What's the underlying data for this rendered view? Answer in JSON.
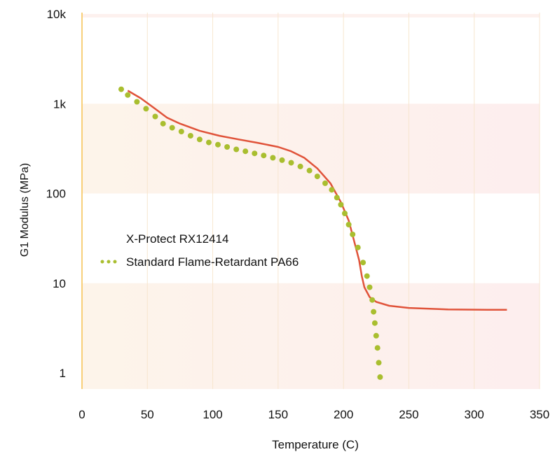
{
  "chart_data": {
    "type": "line",
    "xlabel": "Temperature (C)",
    "ylabel": "G1 Modulus (MPa)",
    "xlim": [
      0,
      350
    ],
    "ylim": [
      0.7,
      10000
    ],
    "y_scale": "log",
    "x_ticks": [
      0,
      50,
      100,
      150,
      200,
      250,
      300,
      350
    ],
    "y_ticks": [
      1,
      10,
      100,
      1000,
      10000
    ],
    "y_tick_labels": [
      "1",
      "10",
      "100",
      "1k",
      "10k"
    ],
    "grid": true,
    "legend_position": "left-center",
    "series": [
      {
        "name": "X-Protect RX12414",
        "style": "solid",
        "color": "#e0533a",
        "x": [
          35,
          45,
          55,
          65,
          75,
          90,
          105,
          120,
          135,
          150,
          160,
          170,
          180,
          190,
          198,
          204,
          208,
          212,
          214,
          216,
          220,
          225,
          235,
          250,
          280,
          310,
          325
        ],
        "y": [
          1400,
          1150,
          900,
          700,
          600,
          500,
          440,
          400,
          365,
          330,
          295,
          250,
          190,
          130,
          80,
          50,
          30,
          18,
          12,
          9,
          7,
          6.2,
          5.6,
          5.3,
          5.1,
          5.05,
          5.05
        ]
      },
      {
        "name": "Standard Flame-Retardant PA66",
        "style": "dotted",
        "color": "#a9be2f",
        "x": [
          30,
          35,
          42,
          49,
          56,
          62,
          69,
          76,
          83,
          90,
          97,
          104,
          111,
          118,
          125,
          132,
          139,
          146,
          153,
          160,
          167,
          174,
          180,
          186,
          191,
          195,
          198,
          201,
          204,
          207,
          211,
          215,
          218,
          220,
          222,
          223,
          224,
          225,
          226,
          227,
          228
        ],
        "y": [
          1450,
          1250,
          1050,
          880,
          720,
          600,
          540,
          490,
          440,
          400,
          370,
          350,
          330,
          310,
          295,
          280,
          265,
          250,
          235,
          220,
          200,
          180,
          155,
          130,
          110,
          90,
          75,
          60,
          45,
          35,
          25,
          17,
          12,
          9,
          6.5,
          4.8,
          3.6,
          2.6,
          1.9,
          1.3,
          0.9
        ]
      }
    ]
  }
}
